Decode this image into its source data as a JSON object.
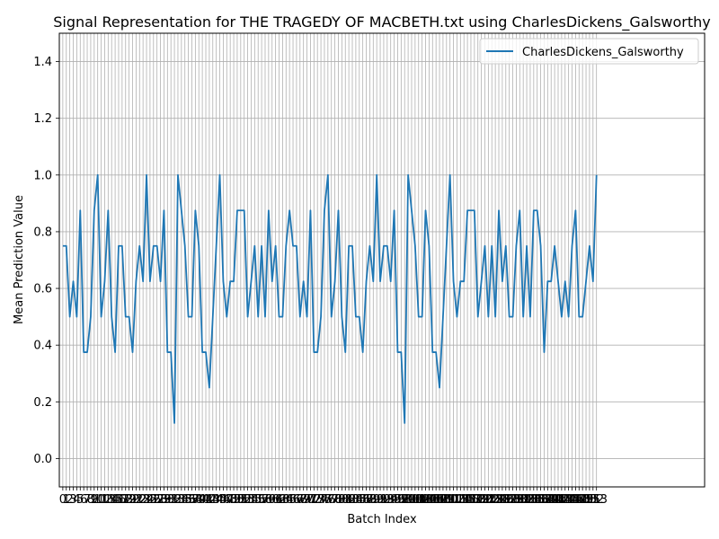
{
  "chart_data": {
    "type": "line",
    "title": "Signal Representation for THE TRAGEDY OF MACBETH.txt using CharlesDickens_Galsworthy",
    "xlabel": "Batch Index",
    "ylabel": "Mean Prediction Value",
    "xlim": [
      -1,
      184
    ],
    "ylim": [
      -0.1,
      1.5
    ],
    "yticks": [
      "0.0",
      "0.2",
      "0.4",
      "0.6",
      "0.8",
      "1.0",
      "1.2",
      "1.4"
    ],
    "grid": true,
    "legend_position": "top-right",
    "series": [
      {
        "name": "CharlesDickens_Galsworthy",
        "color": "#1f77b4",
        "x_start": 0,
        "values": [
          0.75,
          0.75,
          0.5,
          0.625,
          0.5,
          0.875,
          0.375,
          0.375,
          0.5,
          0.875,
          1.0,
          0.5,
          0.625,
          0.875,
          0.5,
          0.375,
          0.75,
          0.75,
          0.5,
          0.5,
          0.375,
          0.625,
          0.75,
          0.625,
          1.0,
          0.625,
          0.75,
          0.75,
          0.625,
          0.875,
          0.375,
          0.375,
          0.125,
          1.0,
          0.875,
          0.75,
          0.5,
          0.5,
          0.875,
          0.75,
          0.375,
          0.375,
          0.25,
          0.5,
          0.75,
          1.0,
          0.625,
          0.5,
          0.625,
          0.625,
          0.875,
          0.875,
          0.875,
          0.5,
          0.625,
          0.75,
          0.5,
          0.75,
          0.5,
          0.875,
          0.625,
          0.75,
          0.5,
          0.5,
          0.75,
          0.875,
          0.75,
          0.75,
          0.5,
          0.625,
          0.5,
          0.875,
          0.375,
          0.375,
          0.5,
          0.875,
          1.0,
          0.5,
          0.625,
          0.875,
          0.5,
          0.375,
          0.75,
          0.75,
          0.5,
          0.5,
          0.375,
          0.625,
          0.75,
          0.625,
          1.0,
          0.625,
          0.75,
          0.75,
          0.625,
          0.875,
          0.375,
          0.375,
          0.125,
          1.0,
          0.875,
          0.75,
          0.5,
          0.5,
          0.875,
          0.75,
          0.375,
          0.375,
          0.25,
          0.5,
          0.75,
          1.0,
          0.625,
          0.5,
          0.625,
          0.625,
          0.875,
          0.875,
          0.875,
          0.5,
          0.625,
          0.75,
          0.5,
          0.75,
          0.5,
          0.875,
          0.625,
          0.75,
          0.5,
          0.5,
          0.75,
          0.875,
          0.5,
          0.75,
          0.5,
          0.875,
          0.875,
          0.75,
          0.375,
          0.625,
          0.625,
          0.75,
          0.625,
          0.5,
          0.625,
          0.5,
          0.75,
          0.875,
          0.5,
          0.5,
          0.625,
          0.75,
          0.625,
          1.0
        ]
      }
    ]
  }
}
